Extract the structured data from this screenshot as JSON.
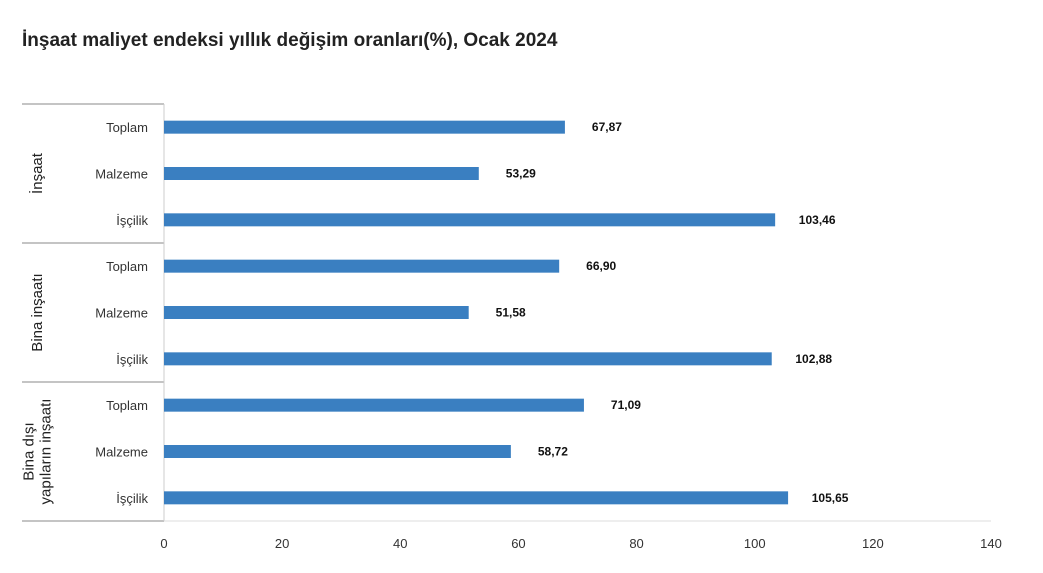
{
  "chart_data": {
    "type": "bar",
    "orientation": "horizontal",
    "title": "İnşaat maliyet endeksi yıllık değişim oranları(%), Ocak 2024",
    "xlim": [
      0,
      140
    ],
    "x_ticks": [
      "0",
      "20",
      "40",
      "60",
      "80",
      "100",
      "120",
      "140"
    ],
    "x_tick_values": [
      0,
      20,
      40,
      60,
      80,
      100,
      120,
      140
    ],
    "bar_color": "#3a7fc1",
    "grid": false,
    "groups": [
      {
        "label_lines": [
          "İnşaat"
        ],
        "categories": [
          {
            "label": "Toplam",
            "value": 67.87,
            "value_label": "67,87"
          },
          {
            "label": "Malzeme",
            "value": 53.29,
            "value_label": "53,29"
          },
          {
            "label": "İşçilik",
            "value": 103.46,
            "value_label": "103,46"
          }
        ]
      },
      {
        "label_lines": [
          "Bina inşaatı"
        ],
        "categories": [
          {
            "label": "Toplam",
            "value": 66.9,
            "value_label": "66,90"
          },
          {
            "label": "Malzeme",
            "value": 51.58,
            "value_label": "51,58"
          },
          {
            "label": "İşçilik",
            "value": 102.88,
            "value_label": "102,88"
          }
        ]
      },
      {
        "label_lines": [
          "Bina dışı",
          "yapıların inşaatı"
        ],
        "categories": [
          {
            "label": "Toplam",
            "value": 71.09,
            "value_label": "71,09"
          },
          {
            "label": "Malzeme",
            "value": 58.72,
            "value_label": "58,72"
          },
          {
            "label": "İşçilik",
            "value": 105.65,
            "value_label": "105,65"
          }
        ]
      }
    ]
  }
}
